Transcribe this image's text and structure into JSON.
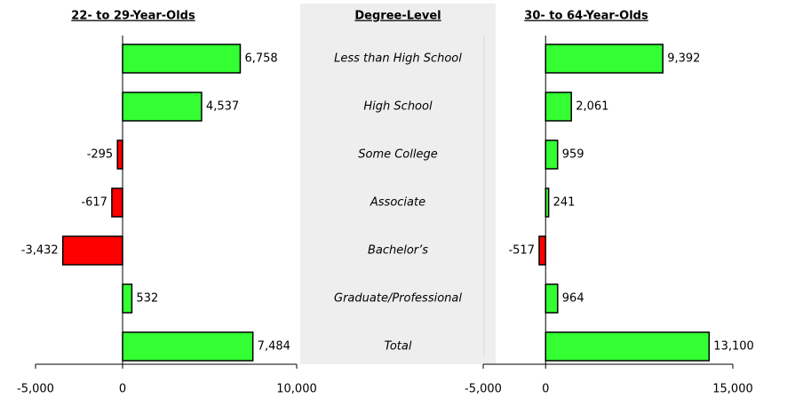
{
  "categories_panel": {
    "title": "Degree-Level",
    "categories": [
      "Less than High School",
      "High School",
      "Some College",
      "Associate",
      "Bachelor’s",
      "Graduate/Professional",
      "Total"
    ]
  },
  "positive_color": "#33ff33",
  "negative_color": "#ff0000",
  "chart_data": [
    {
      "type": "bar",
      "orientation": "horizontal",
      "title": "22- to 29-Year-Olds",
      "values": [
        6758,
        4537,
        -295,
        -617,
        -3432,
        532,
        7484
      ],
      "value_labels": [
        "6,758",
        "4,537",
        "-295",
        "-617",
        "-3,432",
        "532",
        "7,484"
      ],
      "xlim": [
        -5000,
        10000
      ],
      "xticks": [
        {
          "value": -5000,
          "label": "-5,000"
        },
        0,
        {
          "value": 10000,
          "label": "10,000"
        }
      ]
    },
    {
      "type": "bar",
      "orientation": "horizontal",
      "title": "30- to 64-Year-Olds",
      "values": [
        9392,
        2061,
        959,
        241,
        -517,
        964,
        13100
      ],
      "value_labels": [
        "9,392",
        "2,061",
        "959",
        "241",
        "-517",
        "964",
        "13,100"
      ],
      "xlim": [
        -5000,
        15000
      ],
      "xticks": [
        {
          "value": -5000,
          "label": "-5,000"
        },
        0,
        {
          "value": 15000,
          "label": "15,000"
        }
      ]
    }
  ]
}
